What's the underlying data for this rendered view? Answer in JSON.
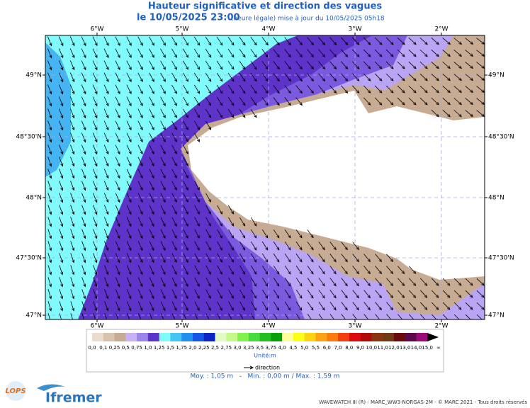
{
  "header": {
    "title": "Hauteur significative et direction des vagues",
    "date": "le 10/05/2025 23:00",
    "update": "(heure légale) mise à jour du 10/05/2025 05h18"
  },
  "map": {
    "lon_labels": [
      "6°W",
      "5°W",
      "4°W",
      "3°W",
      "2°W"
    ],
    "lat_labels": [
      "49°N",
      "48°30'N",
      "48°N",
      "47°30'N",
      "47°N"
    ]
  },
  "legend": {
    "scale_labels": [
      "0,0",
      "0,1",
      "0,25",
      "0,5",
      "0,75",
      "1,0",
      "1,25",
      "1,5",
      "1,75",
      "2,0",
      "2,25",
      "2,5",
      "2,75",
      "3,0",
      "3,25",
      "3,5",
      "3,75",
      "4,0",
      "4,5",
      "5,0",
      "5,5",
      "6,0",
      "7,0",
      "8,0",
      "9,0",
      "10,0",
      "11,0",
      "12,0",
      "13,0",
      "14,0",
      "15,0",
      "∞"
    ],
    "scale_colors": [
      "#ecdccd",
      "#dac3ae",
      "#c7ab92",
      "#c6b2f6",
      "#9e82ee",
      "#5d33c9",
      "#80fafa",
      "#44c6f4",
      "#1f8ff0",
      "#1454e6",
      "#0b24c4",
      "#e2fbc4",
      "#c4f98a",
      "#84f04a",
      "#46dc3c",
      "#22bf22",
      "#07a007",
      "#fdfd9a",
      "#fdfd16",
      "#fcd312",
      "#fba312",
      "#fb7c0c",
      "#f34010",
      "#dd0c0c",
      "#b10808",
      "#8a3410",
      "#6f3a14",
      "#6a0a0a",
      "#5a0a4a",
      "#9b0a78",
      "#000000"
    ],
    "unit": "Unité:m",
    "direction": "direction",
    "stats": "Moy. : 1,05 m   -   Min. : 0,00 m / Max. : 1,59 m"
  },
  "footer": {
    "lops": "LOPS",
    "ifremer": "Ifremer",
    "credit": "WAVEWATCH III (R) - MARC_WW3-NORGAS-2M - © MARC 2021 - Tous droits réservés"
  }
}
